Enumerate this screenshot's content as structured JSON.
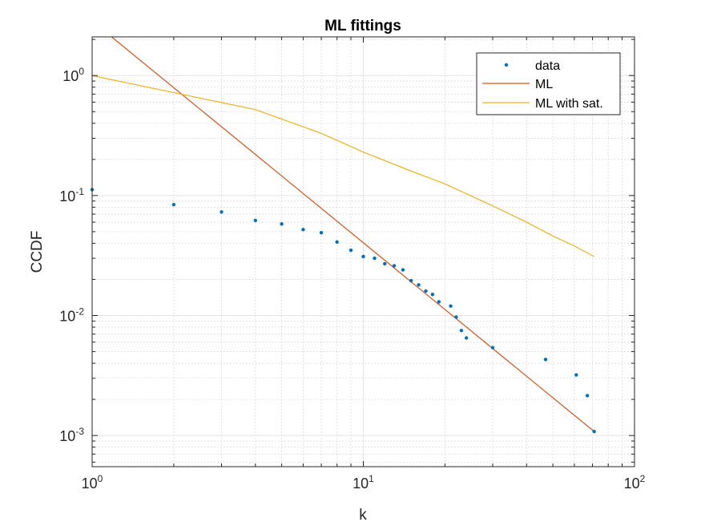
{
  "chart_data": {
    "type": "scatter",
    "title": "ML fittings",
    "xlabel": "k",
    "ylabel": "CCDF",
    "xscale": "log",
    "yscale": "log",
    "xlim": [
      1,
      100
    ],
    "ylim": [
      0.00055,
      2.1
    ],
    "grid": true,
    "minor_grid": true,
    "legend_position": "top-right",
    "x_ticks": [
      {
        "base": "10",
        "exp": "0",
        "value": 1
      },
      {
        "base": "10",
        "exp": "1",
        "value": 10
      },
      {
        "base": "10",
        "exp": "2",
        "value": 100
      }
    ],
    "y_ticks": [
      {
        "base": "10",
        "exp": "-3",
        "value": 0.001
      },
      {
        "base": "10",
        "exp": "-2",
        "value": 0.01
      },
      {
        "base": "10",
        "exp": "-1",
        "value": 0.1
      },
      {
        "base": "10",
        "exp": "0",
        "value": 1
      }
    ],
    "series": [
      {
        "name": "data",
        "style": "points",
        "color": "#0072BD",
        "x": [
          1,
          2,
          3,
          4,
          5,
          6,
          7,
          8,
          9,
          10,
          11,
          12,
          13,
          14,
          15,
          16,
          17,
          18,
          19,
          21,
          22,
          23,
          24,
          30,
          47,
          61,
          67,
          71
        ],
        "y": [
          0.112,
          0.084,
          0.073,
          0.062,
          0.058,
          0.052,
          0.049,
          0.041,
          0.035,
          0.031,
          0.03,
          0.027,
          0.026,
          0.024,
          0.0195,
          0.018,
          0.016,
          0.015,
          0.013,
          0.012,
          0.0097,
          0.0075,
          0.0065,
          0.0054,
          0.0043,
          0.0032,
          0.00215,
          0.00108
        ]
      },
      {
        "name": "ML",
        "style": "line",
        "color": "#D95319",
        "x": [
          1.18,
          71
        ],
        "y": [
          2.1,
          0.00108
        ]
      },
      {
        "name": "ML with sat.",
        "style": "line",
        "color": "#EDB120",
        "x": [
          1,
          2,
          4,
          7,
          10,
          15,
          20,
          30,
          40,
          50,
          60,
          71
        ],
        "y": [
          1.0,
          0.72,
          0.52,
          0.33,
          0.23,
          0.16,
          0.125,
          0.082,
          0.06,
          0.046,
          0.038,
          0.031
        ]
      }
    ]
  }
}
